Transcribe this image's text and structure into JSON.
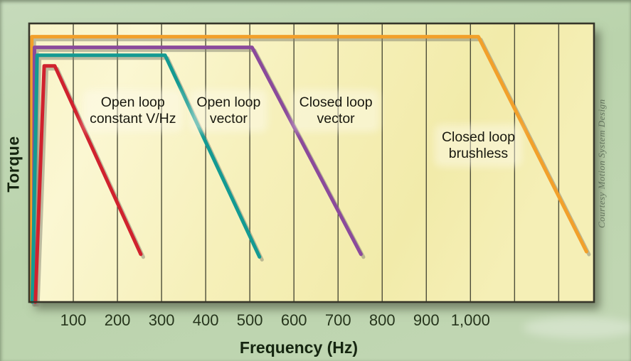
{
  "axis_labels": {
    "x": "Frequency (Hz)",
    "y": "Torque"
  },
  "watermark": "Courtesy Motion System Design",
  "colors": {
    "background": "#bdd4b1",
    "plot_background": "#f7f2c0",
    "gridline": "#4d4d39",
    "plot_border": "#36362a",
    "tick_text": "#26351c",
    "red_series": "#d0222e",
    "teal_series": "#149a92",
    "purple_series": "#8b4a9b",
    "orange_series": "#f2a02a"
  },
  "chart_data": {
    "type": "line",
    "title": "",
    "xlabel": "Frequency (Hz)",
    "ylabel": "Torque",
    "x_range_hz": [
      0,
      1280
    ],
    "y_range_pct": [
      0,
      105
    ],
    "grid": "vertical gridlines every 100 Hz, no horizontal gridlines",
    "legend_position": "inline annotations next to each curve",
    "x_ticks": [
      {
        "hz": 100,
        "label": "100"
      },
      {
        "hz": 200,
        "label": "200"
      },
      {
        "hz": 300,
        "label": "300"
      },
      {
        "hz": 400,
        "label": "400"
      },
      {
        "hz": 500,
        "label": "500"
      },
      {
        "hz": 600,
        "label": "600"
      },
      {
        "hz": 700,
        "label": "700"
      },
      {
        "hz": 800,
        "label": "800"
      },
      {
        "hz": 900,
        "label": "900"
      },
      {
        "hz": 1000,
        "label": "1,000"
      }
    ],
    "gridlines_hz": [
      100,
      200,
      300,
      400,
      500,
      600,
      700,
      800,
      900,
      1000,
      1100,
      1200
    ],
    "series": [
      {
        "name": "Closed loop brushless",
        "color": "#f2a02a",
        "points_hz_torquepct": [
          [
            5,
            0
          ],
          [
            6,
            100
          ],
          [
            1018,
            100
          ],
          [
            1263,
            19
          ]
        ]
      },
      {
        "name": "Closed loop vector",
        "color": "#8b4a9b",
        "points_hz_torquepct": [
          [
            10,
            0
          ],
          [
            12,
            96
          ],
          [
            505,
            96
          ],
          [
            752,
            18
          ]
        ]
      },
      {
        "name": "Open loop vector",
        "color": "#149a92",
        "points_hz_torquepct": [
          [
            7,
            0
          ],
          [
            18,
            93
          ],
          [
            308,
            93
          ],
          [
            522,
            17
          ]
        ]
      },
      {
        "name": "Open loop constant V/Hz",
        "color": "#d0222e",
        "points_hz_torquepct": [
          [
            14,
            0
          ],
          [
            34,
            89
          ],
          [
            58,
            89
          ],
          [
            253,
            18
          ]
        ]
      }
    ],
    "annotations": [
      {
        "lines": [
          "Open loop",
          "constant V/Hz"
        ],
        "hz": 235,
        "pct": 72
      },
      {
        "lines": [
          "Open loop",
          "vector"
        ],
        "hz": 452,
        "pct": 72
      },
      {
        "lines": [
          "Closed loop",
          "vector"
        ],
        "hz": 695,
        "pct": 72
      },
      {
        "lines": [
          "Closed loop",
          "brushless"
        ],
        "hz": 1018,
        "pct": 59
      }
    ]
  }
}
